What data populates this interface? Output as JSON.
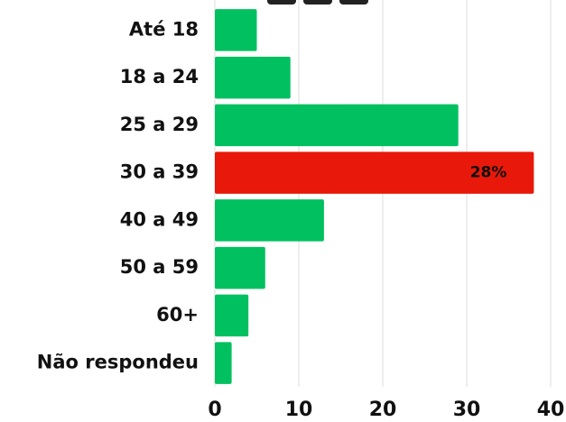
{
  "chart_data": {
    "type": "bar",
    "orientation": "horizontal",
    "categories": [
      "Até 18",
      "18 a 24",
      "25 a 29",
      "30 a 39",
      "40 a 49",
      "50 a 59",
      "60+",
      "Não respondeu"
    ],
    "values": [
      5,
      9,
      29,
      38,
      13,
      6,
      4,
      2
    ],
    "colors": [
      "#00c060",
      "#00c060",
      "#00c060",
      "#e8190a",
      "#00c060",
      "#00c060",
      "#00c060",
      "#00c060"
    ],
    "annotation": "28%",
    "xlim": [
      0,
      40
    ],
    "xticks": [
      0,
      10,
      20,
      30,
      40
    ],
    "grid": true
  }
}
